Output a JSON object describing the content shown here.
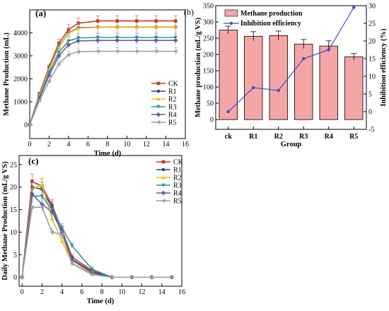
{
  "panels": {
    "a": "(a)",
    "b": "(b)",
    "c": "(c)"
  },
  "chart_data": [
    {
      "id": "a",
      "type": "line",
      "xlabel": "Time (d)",
      "ylabel": "Methane Production (mL)",
      "xlim": [
        0,
        16
      ],
      "ylim": [
        -600,
        5000
      ],
      "xticks": [
        0,
        2,
        4,
        6,
        8,
        10,
        12,
        14,
        16
      ],
      "yticks": [
        0,
        1000,
        2000,
        3000,
        4000
      ],
      "legend_position": "center-right",
      "x": [
        0,
        1,
        2,
        3,
        4,
        5,
        7,
        9,
        11,
        13,
        15
      ],
      "series": [
        {
          "name": "CK",
          "color": "#c0392b",
          "marker": "square",
          "values": [
            0,
            1350,
            2520,
            3550,
            4150,
            4420,
            4520,
            4520,
            4520,
            4520,
            4520
          ]
        },
        {
          "name": "R1",
          "color": "#2e3fa3",
          "marker": "circle",
          "values": [
            0,
            1300,
            2450,
            3400,
            4000,
            4220,
            4250,
            4250,
            4250,
            4250,
            4250
          ]
        },
        {
          "name": "R2",
          "color": "#e8c21a",
          "marker": "triangle-up",
          "values": [
            0,
            1280,
            2420,
            3380,
            3980,
            4200,
            4240,
            4240,
            4240,
            4240,
            4240
          ]
        },
        {
          "name": "R3",
          "color": "#2a9d8f",
          "marker": "triangle-down",
          "values": [
            0,
            1200,
            2280,
            3150,
            3650,
            3780,
            3800,
            3800,
            3800,
            3800,
            3800
          ]
        },
        {
          "name": "R4",
          "color": "#6a5aa8",
          "marker": "diamond",
          "values": [
            0,
            1150,
            2150,
            3000,
            3480,
            3650,
            3670,
            3670,
            3670,
            3670,
            3670
          ]
        },
        {
          "name": "R5",
          "color": "#9e9e9e",
          "marker": "left-triangle",
          "values": [
            0,
            1050,
            1900,
            2650,
            3050,
            3180,
            3200,
            3200,
            3200,
            3200,
            3200
          ]
        }
      ]
    },
    {
      "id": "b",
      "type": "bar",
      "xlabel": "Group",
      "ylabel": "Methane production (mL/g VS)",
      "y2label": "Inhibition efficiency (%)",
      "categories": [
        "ck",
        "R1",
        "R2",
        "R3",
        "R4",
        "R5"
      ],
      "ylim": [
        -30,
        350
      ],
      "yticks": [
        0,
        50,
        100,
        150,
        200,
        250,
        300,
        350
      ],
      "y2lim": [
        -5,
        30
      ],
      "y2ticks": [
        -5,
        0,
        5,
        10,
        15,
        20,
        25,
        30
      ],
      "legend_position": "top-left",
      "bar_color": "#f4a6a6",
      "line_color": "#3b4cc0",
      "series": [
        {
          "name": "Methane production",
          "values": [
            275,
            256,
            258,
            232,
            226,
            193
          ],
          "errors": [
            12,
            14,
            14,
            14,
            16,
            10
          ]
        },
        {
          "name": "Inhibition efficiency",
          "axis": "right",
          "values": [
            0,
            6.8,
            6.0,
            15.0,
            17.5,
            29.5
          ]
        }
      ]
    },
    {
      "id": "c",
      "type": "line",
      "xlabel": "Time (d)",
      "ylabel": "Daily Methane Production (mL/g VS)",
      "xlim": [
        -0.3,
        16
      ],
      "ylim": [
        -2,
        27
      ],
      "xticks": [
        0,
        2,
        4,
        6,
        8,
        10,
        12,
        14,
        16
      ],
      "yticks": [
        0,
        5,
        10,
        15,
        20,
        25
      ],
      "legend_position": "top-right",
      "x": [
        0,
        1,
        2,
        3,
        4,
        5,
        7,
        9,
        11,
        13,
        15
      ],
      "series": [
        {
          "name": "CK",
          "color": "#c0392b",
          "marker": "square",
          "values": [
            0,
            21.2,
            20.2,
            16.0,
            10.5,
            4.5,
            1.5,
            0,
            0,
            0,
            0
          ]
        },
        {
          "name": "R1",
          "color": "#2e3fa3",
          "marker": "circle",
          "values": [
            0,
            20.0,
            19.5,
            15.5,
            9.5,
            4.0,
            1.2,
            0,
            0,
            0,
            0
          ]
        },
        {
          "name": "R2",
          "color": "#e8c21a",
          "marker": "triangle-up",
          "values": [
            0,
            19.5,
            20.5,
            13.0,
            8.0,
            3.2,
            0.8,
            0,
            0,
            0,
            0
          ]
        },
        {
          "name": "R3",
          "color": "#2a9d8f",
          "marker": "triangle-down",
          "values": [
            0,
            18.0,
            18.0,
            15.0,
            11.0,
            7.0,
            1.8,
            0,
            0,
            0,
            0
          ]
        },
        {
          "name": "R4",
          "color": "#6a5aa8",
          "marker": "diamond",
          "values": [
            0,
            18.5,
            16.2,
            14.5,
            10.0,
            3.8,
            1.0,
            0,
            0,
            0,
            0
          ]
        },
        {
          "name": "R5",
          "color": "#9e9e9e",
          "marker": "left-triangle",
          "values": [
            0,
            15.5,
            15.5,
            10.0,
            9.5,
            3.0,
            0.6,
            0,
            0,
            0,
            0
          ]
        }
      ]
    }
  ]
}
